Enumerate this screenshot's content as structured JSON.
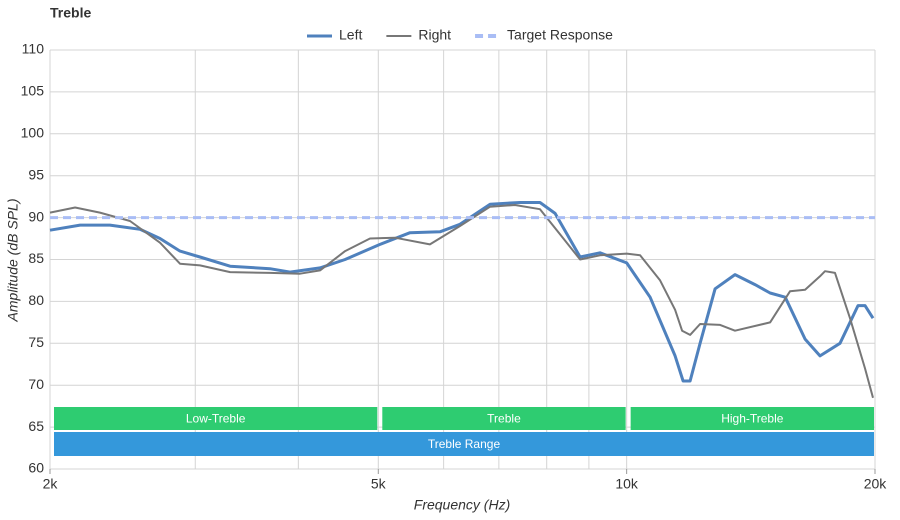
{
  "chart_data": {
    "type": "line",
    "title": "Treble",
    "x_label": "Frequency (Hz)",
    "y_label": "Amplitude (dB SPL)",
    "xscale": "log",
    "xlim": [
      2000,
      20000
    ],
    "xticks": [
      {
        "value": 2000,
        "label": "2k"
      },
      {
        "value": 5000,
        "label": "5k"
      },
      {
        "value": 10000,
        "label": "10k"
      },
      {
        "value": 20000,
        "label": "20k"
      }
    ],
    "xgrid": [
      3000,
      4000,
      6000,
      7000,
      8000,
      9000
    ],
    "ylim": [
      60,
      110
    ],
    "yticks": [
      60,
      65,
      70,
      75,
      80,
      85,
      90,
      95,
      100,
      105,
      110
    ],
    "grid": true,
    "series": [
      {
        "name": "Left",
        "color": "#4f81bd",
        "x": [
          2000,
          2175,
          2364,
          2571,
          2719,
          2875,
          3040,
          3306,
          3696,
          3908,
          4249,
          4557,
          5024,
          5463,
          5940,
          6281,
          6831,
          7425,
          7852,
          8189,
          8781,
          9283,
          10000,
          10677,
          11447,
          11706,
          11938,
          12275,
          12800,
          13530,
          14306,
          14924,
          15564,
          16455,
          17154,
          18137,
          19074,
          19450,
          19890
        ],
        "values": [
          88.5,
          89.1,
          89.1,
          88.6,
          87.5,
          86.0,
          85.3,
          84.2,
          83.9,
          83.5,
          84.0,
          85.0,
          86.8,
          88.2,
          88.3,
          89.2,
          91.6,
          91.8,
          91.8,
          90.5,
          85.3,
          85.8,
          84.6,
          80.5,
          73.5,
          70.5,
          70.5,
          75.0,
          81.5,
          83.2,
          82.0,
          81.0,
          80.5,
          75.5,
          73.5,
          75.0,
          79.5,
          79.5,
          78.0
        ]
      },
      {
        "name": "Right",
        "color": "#777777",
        "x": [
          2000,
          2145,
          2299,
          2500,
          2719,
          2875,
          3040,
          3306,
          3696,
          4018,
          4249,
          4557,
          4886,
          5239,
          5775,
          6281,
          6831,
          7322,
          7852,
          8305,
          8781,
          9283,
          10000,
          10383,
          10979,
          11447,
          11674,
          11938,
          12275,
          12979,
          13530,
          14924,
          15777,
          16455,
          17154,
          17395,
          17887,
          18652,
          19450,
          19890
        ],
        "values": [
          90.6,
          91.2,
          90.6,
          89.6,
          87.0,
          84.5,
          84.3,
          83.5,
          83.4,
          83.3,
          83.7,
          86.0,
          87.5,
          87.6,
          86.8,
          89.0,
          91.3,
          91.5,
          91.0,
          88.0,
          85.0,
          85.5,
          85.7,
          85.5,
          82.5,
          79.0,
          76.5,
          76.0,
          77.3,
          77.2,
          76.5,
          77.5,
          81.2,
          81.4,
          83.0,
          83.6,
          83.4,
          78.0,
          72.0,
          68.5
        ]
      },
      {
        "name": "Target Response",
        "color": "#a9bdf5",
        "dashed": true,
        "x": [
          2000,
          20000
        ],
        "values": [
          90,
          90
        ]
      }
    ],
    "bands": [
      {
        "label": "Low-Treble",
        "start": 2000,
        "end": 5000,
        "color": "#2ecc71"
      },
      {
        "label": "Treble",
        "start": 5000,
        "end": 10000,
        "color": "#2ecc71"
      },
      {
        "label": "High-Treble",
        "start": 10000,
        "end": 20000,
        "color": "#2ecc71"
      }
    ],
    "overall_band": {
      "label": "Treble Range",
      "start": 2000,
      "end": 20000,
      "color": "#3498db"
    }
  }
}
